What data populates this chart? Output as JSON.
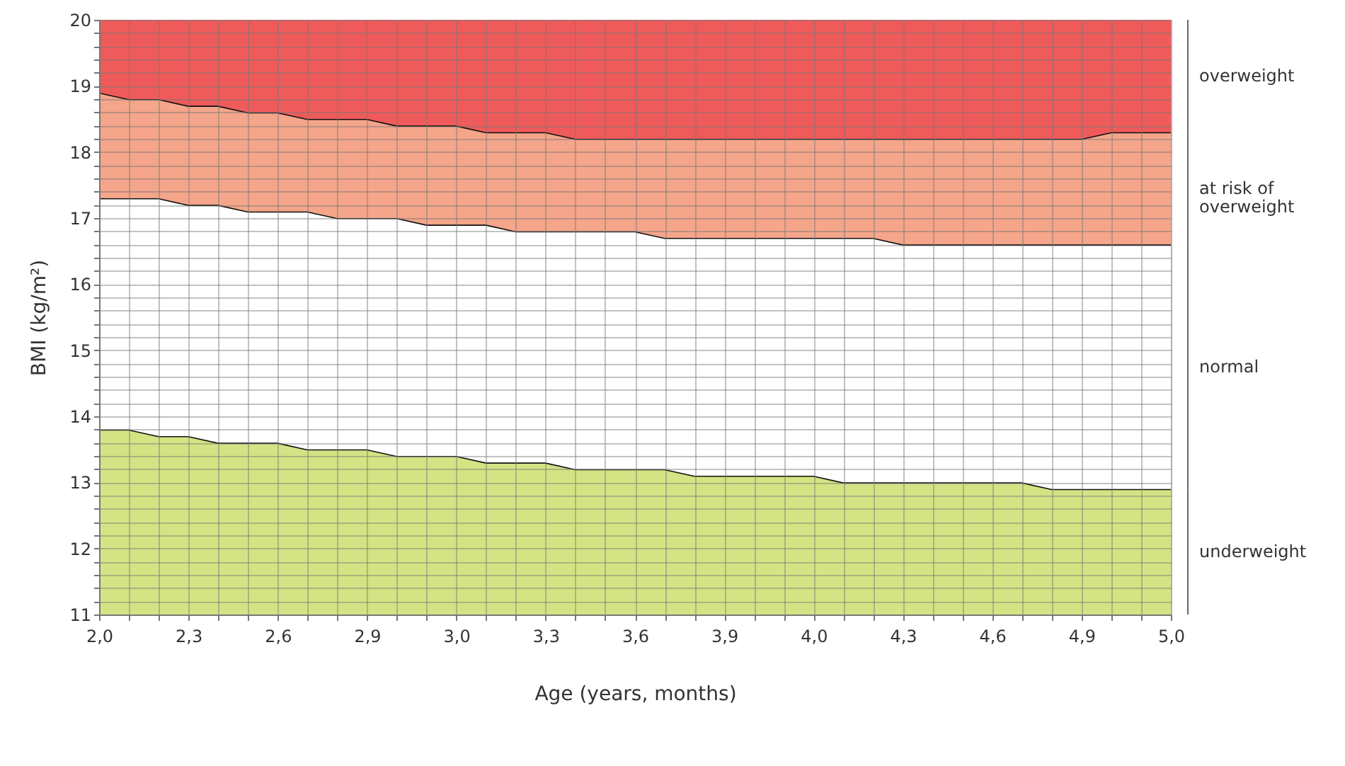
{
  "chart_data": {
    "type": "area",
    "xlabel": "Age (years, months)",
    "ylabel": "BMI (kg/m²)",
    "categories": [
      "2,0",
      null,
      null,
      "2,3",
      null,
      null,
      "2,6",
      null,
      null,
      "2,9",
      null,
      null,
      "3,0",
      null,
      null,
      "3,3",
      null,
      null,
      "3,6",
      null,
      null,
      "3,9",
      null,
      null,
      "4,0",
      null,
      null,
      "4,3",
      null,
      null,
      "4,6",
      null,
      null,
      "4,9",
      null,
      null,
      "5,0"
    ],
    "series": [
      {
        "name": "underweight",
        "color": "#d4e383",
        "values": [
          13.8,
          13.8,
          13.7,
          13.7,
          13.6,
          13.6,
          13.6,
          13.5,
          13.5,
          13.5,
          13.4,
          13.4,
          13.4,
          13.3,
          13.3,
          13.3,
          13.2,
          13.2,
          13.2,
          13.2,
          13.1,
          13.1,
          13.1,
          13.1,
          13.1,
          13.0,
          13.0,
          13.0,
          13.0,
          13.0,
          13.0,
          13.0,
          12.9,
          12.9,
          12.9,
          12.9,
          12.9
        ]
      },
      {
        "name": "normal",
        "color": "#ffffff",
        "values": [
          17.3,
          17.3,
          17.3,
          17.2,
          17.2,
          17.1,
          17.1,
          17.1,
          17.0,
          17.0,
          17.0,
          16.9,
          16.9,
          16.9,
          16.8,
          16.8,
          16.8,
          16.8,
          16.8,
          16.7,
          16.7,
          16.7,
          16.7,
          16.7,
          16.7,
          16.7,
          16.7,
          16.6,
          16.6,
          16.6,
          16.6,
          16.6,
          16.6,
          16.6,
          16.6,
          16.6,
          16.6
        ]
      },
      {
        "name": "at risk of\noverweight",
        "color": "#f4a58a",
        "values": [
          18.9,
          18.8,
          18.8,
          18.7,
          18.7,
          18.6,
          18.6,
          18.5,
          18.5,
          18.5,
          18.4,
          18.4,
          18.4,
          18.3,
          18.3,
          18.3,
          18.2,
          18.2,
          18.2,
          18.2,
          18.2,
          18.2,
          18.2,
          18.2,
          18.2,
          18.2,
          18.2,
          18.2,
          18.2,
          18.2,
          18.2,
          18.2,
          18.2,
          18.2,
          18.3,
          18.3,
          18.3
        ]
      },
      {
        "name": "overweight",
        "color": "#ef5a5a",
        "values": [
          20,
          20,
          20,
          20,
          20,
          20,
          20,
          20,
          20,
          20,
          20,
          20,
          20,
          20,
          20,
          20,
          20,
          20,
          20,
          20,
          20,
          20,
          20,
          20,
          20,
          20,
          20,
          20,
          20,
          20,
          20,
          20,
          20,
          20,
          20,
          20,
          20
        ]
      }
    ],
    "ylim": [
      11,
      20
    ],
    "yticks": [
      11,
      {
        "value": 11.2,
        "label": null
      },
      {
        "value": 11.4,
        "label": null
      },
      {
        "value": 11.6,
        "label": null
      },
      {
        "value": 11.8,
        "label": null
      },
      12,
      {
        "value": 12.2,
        "label": null
      },
      {
        "value": 12.4,
        "label": null
      },
      {
        "value": 12.6,
        "label": null
      },
      {
        "value": 12.8,
        "label": null
      },
      13,
      {
        "value": 13.2,
        "label": null
      },
      {
        "value": 13.4,
        "label": null
      },
      {
        "value": 13.6,
        "label": null
      },
      {
        "value": 13.8,
        "label": null
      },
      14,
      {
        "value": 14.2,
        "label": null
      },
      {
        "value": 14.4,
        "label": null
      },
      {
        "value": 14.6,
        "label": null
      },
      {
        "value": 14.8,
        "label": null
      },
      15,
      {
        "value": 15.2,
        "label": null
      },
      {
        "value": 15.4,
        "label": null
      },
      {
        "value": 15.6,
        "label": null
      },
      {
        "value": 15.8,
        "label": null
      },
      16,
      {
        "value": 16.2,
        "label": null
      },
      {
        "value": 16.4,
        "label": null
      },
      {
        "value": 16.6,
        "label": null
      },
      {
        "value": 16.8,
        "label": null
      },
      17,
      {
        "value": 17.2,
        "label": null
      },
      {
        "value": 17.4,
        "label": null
      },
      {
        "value": 17.6,
        "label": null
      },
      {
        "value": 17.8,
        "label": null
      },
      18,
      {
        "value": 18.2,
        "label": null
      },
      {
        "value": 18.4,
        "label": null
      },
      {
        "value": 18.6,
        "label": null
      },
      {
        "value": 18.8,
        "label": null
      },
      19,
      {
        "value": 19.2,
        "label": null
      },
      {
        "value": 19.4,
        "label": null
      },
      {
        "value": 19.6,
        "label": null
      },
      {
        "value": 19.8,
        "label": null
      },
      20
    ],
    "grid": true
  }
}
